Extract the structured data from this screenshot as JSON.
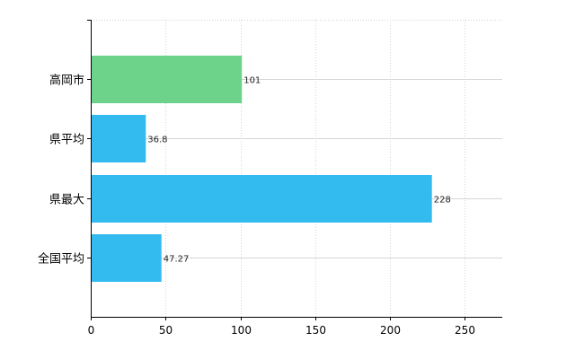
{
  "chart_data": {
    "type": "bar",
    "orientation": "horizontal",
    "categories": [
      "高岡市",
      "県平均",
      "県最大",
      "全国平均"
    ],
    "values": [
      101,
      36.8,
      228,
      47.27
    ],
    "data_labels": [
      "101",
      "36.8",
      "228",
      "47.27"
    ],
    "bar_colors": [
      "#6dd38a",
      "#33bbf0",
      "#33bbf0",
      "#33bbf0"
    ],
    "xlim": [
      0,
      275
    ],
    "xticks": [
      0,
      50,
      100,
      150,
      200,
      250
    ],
    "xtick_labels": [
      "0",
      "50",
      "100",
      "150",
      "200",
      "250"
    ],
    "grid": true,
    "title": "",
    "xlabel": "",
    "ylabel": ""
  }
}
